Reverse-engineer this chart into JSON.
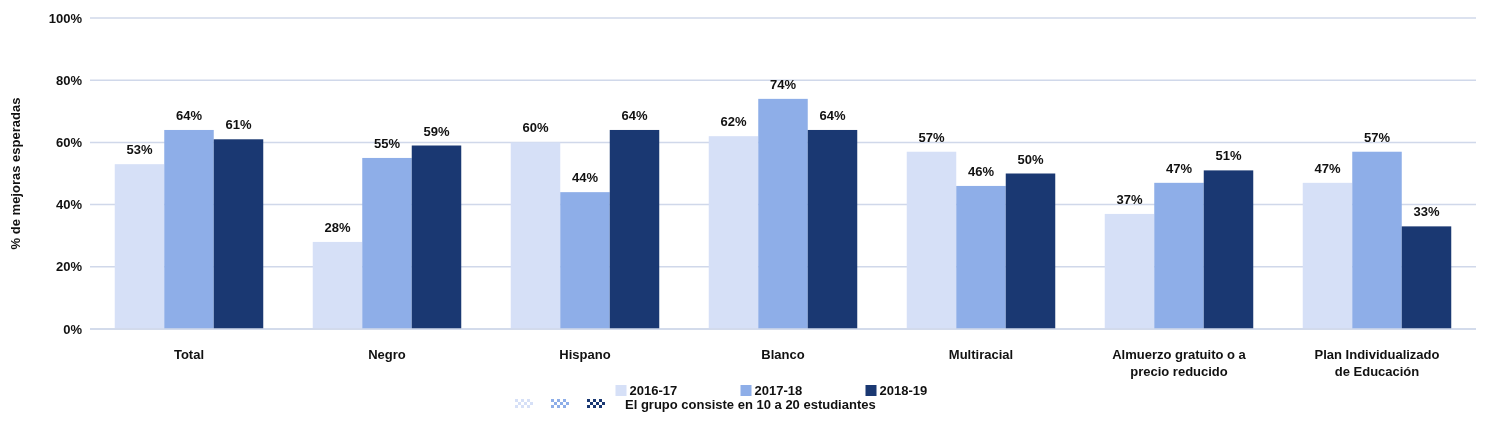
{
  "chart_data": {
    "type": "bar",
    "ylabel": "% de mejoras esperadas",
    "categories": [
      "Total",
      "Negro",
      "Hispano",
      "Blanco",
      "Multiracial",
      "Almuerzo gratuito o a precio reducido",
      "Plan Individualizado de Educación"
    ],
    "series": [
      {
        "name": "2016-17",
        "color": "#d6e0f7",
        "values": [
          53,
          28,
          60,
          62,
          57,
          37,
          47
        ],
        "value_labels": [
          "53%",
          "28%",
          "60%",
          "62%",
          "57%",
          "37%",
          "47%"
        ]
      },
      {
        "name": "2017-18",
        "color": "#8eaee8",
        "values": [
          64,
          55,
          44,
          74,
          46,
          47,
          57
        ],
        "value_labels": [
          "64%",
          "55%",
          "44%",
          "74%",
          "46%",
          "47%",
          "57%"
        ]
      },
      {
        "name": "2018-19",
        "color": "#1a3872",
        "values": [
          61,
          59,
          64,
          64,
          50,
          51,
          33
        ],
        "value_labels": [
          "61%",
          "59%",
          "64%",
          "64%",
          "50%",
          "51%",
          "33%"
        ]
      }
    ],
    "ylim": [
      0,
      100
    ],
    "yticks": [
      {
        "value": 0,
        "label": "0%"
      },
      {
        "value": 20,
        "label": "20%"
      },
      {
        "value": 40,
        "label": "40%"
      },
      {
        "value": 60,
        "label": "60%"
      },
      {
        "value": 80,
        "label": "80%"
      },
      {
        "value": 100,
        "label": "100%"
      }
    ],
    "grid": "y",
    "legend": "bottom",
    "annotations": [
      "El grupo consiste en 10 a 20 estudiantes"
    ]
  }
}
